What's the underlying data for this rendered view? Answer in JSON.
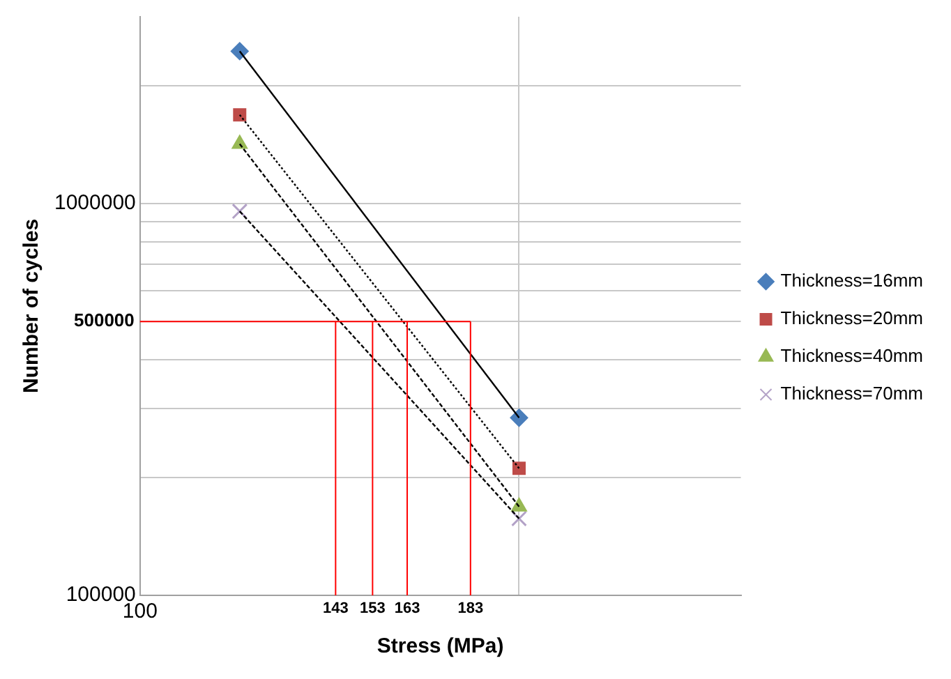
{
  "chart_data": {
    "type": "scatter",
    "xlabel": "Stress (MPa)",
    "ylabel": "Number of cycles",
    "log": "xy",
    "grid": true,
    "legend": "right",
    "x": [
      120,
      200
    ],
    "xlim": [
      100,
      300
    ],
    "xticks": [
      100,
      143,
      153,
      163,
      183,
      {
        "value": 200,
        "label": null
      }
    ],
    "ylim": [
      100000,
      3000000
    ],
    "yticks": [
      100000,
      {
        "value": 200000,
        "label": null
      },
      {
        "value": 300000,
        "label": null
      },
      {
        "value": 400000,
        "label": null
      },
      {
        "value": 500000,
        "label": null
      },
      {
        "value": 600000,
        "label": null
      },
      {
        "value": 700000,
        "label": null
      },
      {
        "value": 800000,
        "label": null
      },
      {
        "value": 900000,
        "label": null
      },
      1000000,
      {
        "value": 2000000,
        "label": null
      }
    ],
    "series": [
      {
        "name": "Thickness=16mm",
        "color": "#4a7ebb",
        "marker": "diamond",
        "values": [
          2450000,
          284000
        ]
      },
      {
        "name": "Thickness=20mm",
        "color": "#be4b48",
        "marker": "square",
        "values": [
          1685000,
          211000
        ]
      },
      {
        "name": "Thickness=40mm",
        "color": "#98b954",
        "marker": "triangle",
        "values": [
          1420000,
          168500
        ]
      },
      {
        "name": "Thickness=70mm",
        "color": "#b3a2c7",
        "marker": "cross",
        "values": [
          956000,
          157000
        ]
      },
      {
        "type": "line",
        "color": "#000000",
        "marker": "none",
        "line_style": "solid",
        "values": [
          2450000,
          284000
        ]
      },
      {
        "type": "line",
        "color": "#000000",
        "marker": "none",
        "line_style": "dotted",
        "values": [
          1685000,
          211000
        ]
      },
      {
        "type": "line",
        "color": "#000000",
        "marker": "none",
        "line_style": "dashed",
        "values": [
          1420000,
          168500
        ]
      },
      {
        "type": "line",
        "color": "#000000",
        "marker": "none",
        "line_style": "dashed",
        "values": [
          956000,
          157000
        ]
      }
    ],
    "ref_lines": [
      {
        "axis": "y",
        "value": 500000,
        "label": "500000",
        "color": "#ff0000"
      },
      {
        "axis": "x",
        "value": 143,
        "color": "#ff0000"
      },
      {
        "axis": "x",
        "value": 153,
        "color": "#ff0000"
      },
      {
        "axis": "x",
        "value": 163,
        "color": "#ff0000"
      },
      {
        "axis": "x",
        "value": 183,
        "color": "#ff0000"
      }
    ]
  }
}
